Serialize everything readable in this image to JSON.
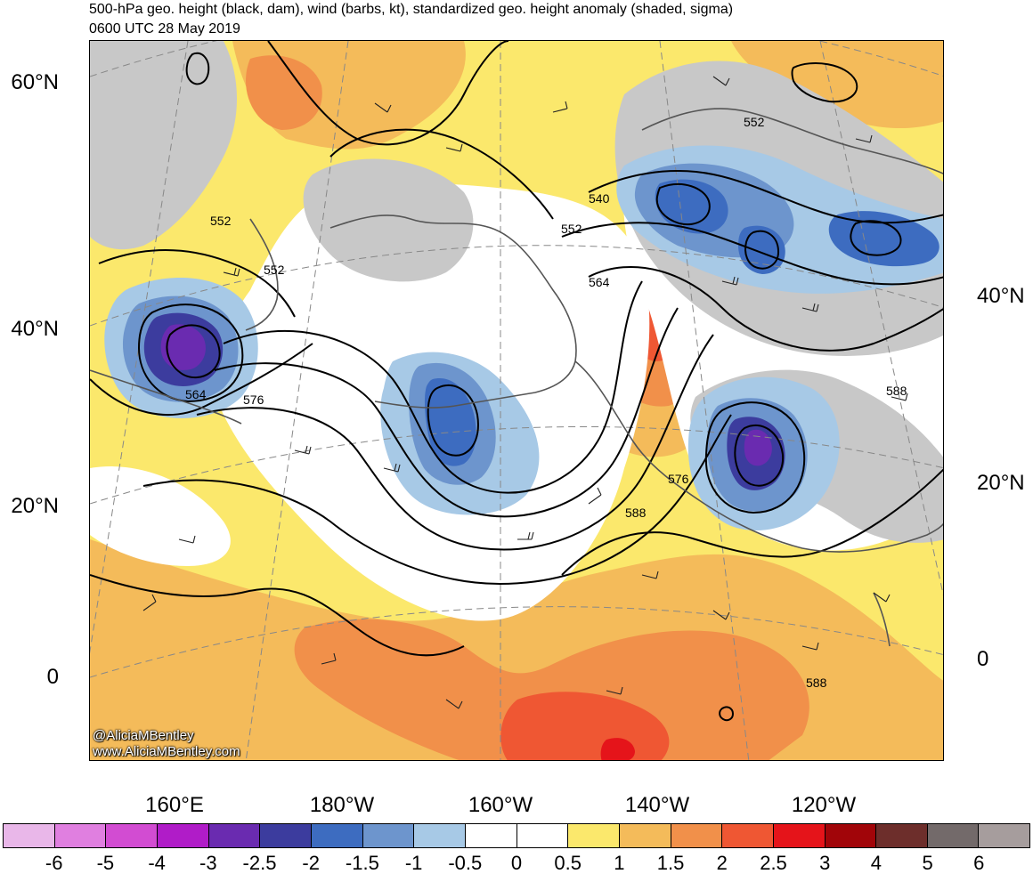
{
  "title_line1": "500-hPa geo. height (black, dam), wind (barbs, kt), standardized geo. height anomaly (shaded, sigma)",
  "title_line2": "0600 UTC 28 May 2019",
  "credit_line1": "@AliciaMBentley",
  "credit_line2": "www.AliciaMBentley.com",
  "lat_labels_left": [
    "60°N",
    "40°N",
    "20°N",
    "0"
  ],
  "lat_labels_right": [
    "40°N",
    "20°N",
    "0"
  ],
  "lon_labels": [
    "160°E",
    "180°W",
    "160°W",
    "140°W",
    "120°W"
  ],
  "contour_labels": [
    "552",
    "552",
    "552",
    "540",
    "552",
    "564",
    "564",
    "576",
    "576",
    "588",
    "588",
    "588"
  ],
  "colorbar": {
    "colors": [
      "#e9b7e9",
      "#e07fe0",
      "#d24cd2",
      "#b01cc8",
      "#6a2bb0",
      "#3c3c9e",
      "#3d6cc0",
      "#6d95cd",
      "#a7c9e6",
      "#ffffff",
      "#ffffff",
      "#fbe86c",
      "#f4bb5a",
      "#f1904a",
      "#ef5733",
      "#e5141a",
      "#a10509",
      "#6d2e2b",
      "#736a6a",
      "#a69d9d"
    ],
    "labels": [
      "-6",
      "-5",
      "-4",
      "-3",
      "-2.5",
      "-2",
      "-1.5",
      "-1",
      "-0.5",
      "0",
      "0.5",
      "1",
      "1.5",
      "2",
      "2.5",
      "3",
      "4",
      "5",
      "6"
    ]
  }
}
